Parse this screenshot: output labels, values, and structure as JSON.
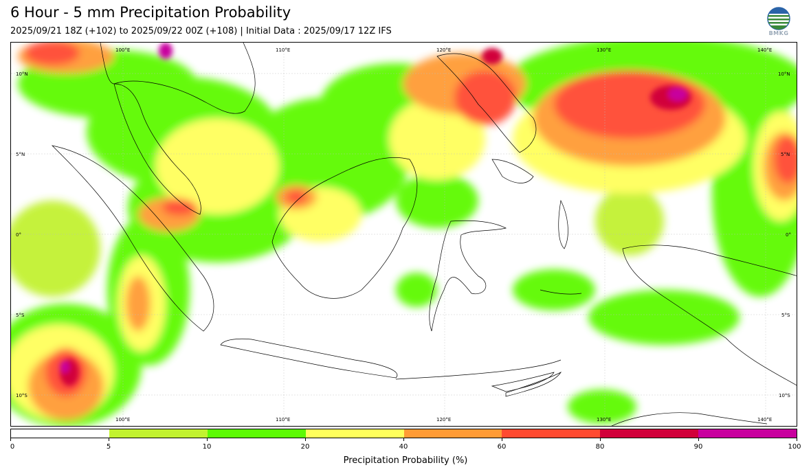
{
  "header": {
    "title": "6 Hour - 5 mm Precipitation Probability",
    "subtitle": "2025/09/21 18Z (+102) to 2025/09/22 00Z (+108) | Initial Data : 2025/09/17 12Z IFS",
    "logo_text": "BMKG"
  },
  "map": {
    "lon_range": [
      92,
      141
    ],
    "lat_range": [
      -12,
      12
    ],
    "lon_labels": [
      "100°E",
      "110°E",
      "120°E",
      "130°E",
      "140°E"
    ],
    "lat_labels": [
      "10°N",
      "5°N",
      "0°",
      "5°S",
      "10°S"
    ],
    "lon_values": [
      100,
      110,
      120,
      130,
      140
    ],
    "lat_values": [
      10,
      5,
      0,
      -5,
      -10
    ],
    "grid": true
  },
  "colorbar": {
    "ticks": [
      "0",
      "5",
      "10",
      "20",
      "40",
      "60",
      "80",
      "90",
      "100"
    ],
    "colors": [
      "#ffffff",
      "#c2f230",
      "#5dfa05",
      "#ffff5c",
      "#ff9b35",
      "#ff4a30",
      "#d1003a",
      "#c8009e"
    ],
    "label": "Precipitation Probability (%)"
  }
}
